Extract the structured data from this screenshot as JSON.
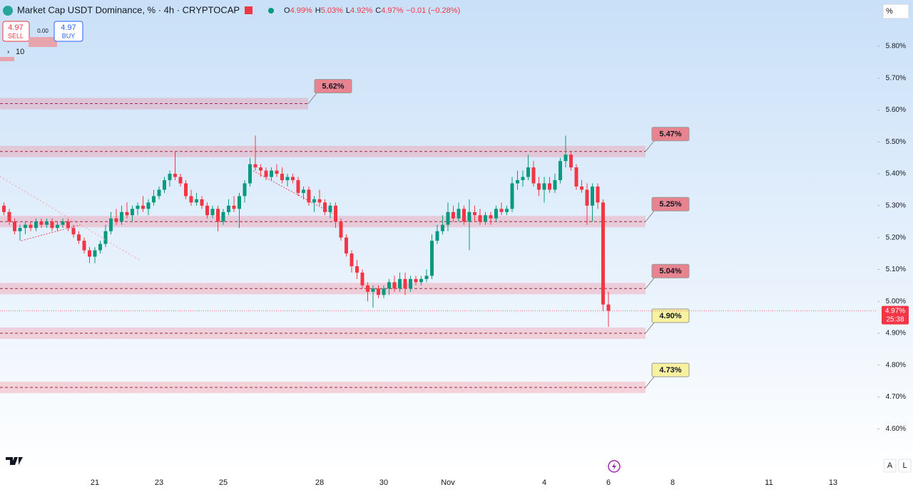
{
  "chart_data": {
    "type": "candlestick",
    "title": "Market Cap USDT Dominance, % · 4h · CRYPTOCAP",
    "ohlc_legend": [
      {
        "label": "O",
        "value": "4.99%"
      },
      {
        "label": "H",
        "value": "5.03%"
      },
      {
        "label": "L",
        "value": "4.92%"
      },
      {
        "label": "C",
        "value": "4.97%"
      }
    ],
    "change": "−0.01 (−0.28%)",
    "trade": {
      "sell_price": "4.97",
      "sell": "SELL",
      "spread": "0.00",
      "buy_price": "4.97",
      "buy": "BUY"
    },
    "indicator": "10",
    "unit": "%",
    "price_tag": {
      "value": 4.97,
      "label": "4.97%",
      "countdown": "25:38"
    },
    "scale_buttons": [
      "A",
      "L"
    ],
    "up_color": "#089981",
    "down_color": "#f23645",
    "ylim": [
      4.46,
      5.945
    ],
    "yticks": [
      {
        "value": 5.8,
        "label": "5.80%"
      },
      {
        "value": 5.7,
        "label": "5.70%"
      },
      {
        "value": 5.6,
        "label": "5.60%"
      },
      {
        "value": 5.5,
        "label": "5.50%"
      },
      {
        "value": 5.4,
        "label": "5.40%"
      },
      {
        "value": 5.3,
        "label": "5.30%"
      },
      {
        "value": 5.2,
        "label": "5.20%"
      },
      {
        "value": 5.1,
        "label": "5.10%"
      },
      {
        "value": 5.0,
        "label": "5.00%"
      },
      {
        "value": 4.9,
        "label": "4.90%"
      },
      {
        "value": 4.8,
        "label": "4.80%"
      },
      {
        "value": 4.7,
        "label": "4.70%"
      },
      {
        "value": 4.6,
        "label": "4.60%"
      }
    ],
    "levels": [
      {
        "value": 5.62,
        "label": "5.62%",
        "color": "#e8848f"
      },
      {
        "value": 5.47,
        "label": "5.47%",
        "color": "#e8848f"
      },
      {
        "value": 5.25,
        "label": "5.25%",
        "color": "#e8848f"
      },
      {
        "value": 5.04,
        "label": "5.04%",
        "color": "#e8848f"
      },
      {
        "value": 4.9,
        "label": "4.90%",
        "color": "#f7f1a0"
      },
      {
        "value": 4.73,
        "label": "4.73%",
        "color": "#f7f1a0"
      }
    ],
    "categories": [
      null,
      null,
      null,
      null,
      null,
      null,
      null,
      null,
      null,
      null,
      null,
      null,
      null,
      null,
      null,
      null,
      null,
      null,
      "21",
      null,
      null,
      null,
      null,
      null,
      null,
      null,
      null,
      null,
      null,
      null,
      "23",
      null,
      null,
      null,
      null,
      null,
      null,
      null,
      null,
      null,
      null,
      null,
      "25",
      null,
      null,
      null,
      null,
      null,
      null,
      null,
      null,
      null,
      null,
      null,
      null,
      null,
      null,
      null,
      null,
      null,
      "28",
      null,
      null,
      null,
      null,
      null,
      null,
      null,
      null,
      null,
      null,
      null,
      "30",
      null,
      null,
      null,
      null,
      null,
      null,
      null,
      null,
      null,
      null,
      null,
      "Nov",
      null,
      null,
      null,
      null,
      null,
      null,
      null,
      null,
      null,
      null,
      null,
      null,
      null,
      null,
      null,
      null,
      null,
      "4",
      null,
      null,
      null,
      null,
      null,
      null,
      null,
      null,
      null,
      null,
      null,
      "6",
      null,
      null,
      null,
      null,
      null,
      null,
      null,
      null,
      null,
      null,
      null,
      "8",
      null,
      null,
      null,
      null,
      null,
      null,
      null,
      null,
      null,
      null,
      null,
      null,
      null,
      null,
      null,
      null,
      null,
      "11",
      null,
      null,
      null,
      null,
      null,
      null,
      null,
      null,
      null,
      null,
      null,
      "13",
      null,
      null,
      null,
      null,
      null,
      null,
      null
    ],
    "ohlc": [
      null,
      [
        5.3,
        5.31,
        5.27,
        5.28
      ],
      [
        5.28,
        5.29,
        5.24,
        5.25
      ],
      [
        5.25,
        5.26,
        5.21,
        5.22
      ],
      [
        5.22,
        5.24,
        5.19,
        5.23
      ],
      [
        5.23,
        5.25,
        5.21,
        5.24
      ],
      [
        5.24,
        5.25,
        5.22,
        5.23
      ],
      [
        5.23,
        5.26,
        5.22,
        5.25
      ],
      [
        5.25,
        5.26,
        5.23,
        5.24
      ],
      [
        5.24,
        5.26,
        5.23,
        5.25
      ],
      [
        5.25,
        5.26,
        5.22,
        5.23
      ],
      [
        5.23,
        5.25,
        5.22,
        5.24
      ],
      [
        5.24,
        5.26,
        5.23,
        5.25
      ],
      [
        5.25,
        5.26,
        5.22,
        5.23
      ],
      [
        5.23,
        5.24,
        5.2,
        5.21
      ],
      [
        5.21,
        5.22,
        5.18,
        5.19
      ],
      [
        5.19,
        5.2,
        5.15,
        5.16
      ],
      [
        5.16,
        5.17,
        5.12,
        5.14
      ],
      [
        5.14,
        5.17,
        5.12,
        5.16
      ],
      [
        5.16,
        5.19,
        5.15,
        5.18
      ],
      [
        5.18,
        5.24,
        5.17,
        5.22
      ],
      [
        5.22,
        5.28,
        5.21,
        5.26
      ],
      [
        5.26,
        5.29,
        5.24,
        5.25
      ],
      [
        5.25,
        5.3,
        5.24,
        5.28
      ],
      [
        5.28,
        5.31,
        5.26,
        5.27
      ],
      [
        5.27,
        5.3,
        5.25,
        5.29
      ],
      [
        5.29,
        5.31,
        5.27,
        5.3
      ],
      [
        5.3,
        5.33,
        5.28,
        5.29
      ],
      [
        5.29,
        5.32,
        5.27,
        5.31
      ],
      [
        5.31,
        5.35,
        5.3,
        5.33
      ],
      [
        5.33,
        5.36,
        5.32,
        5.35
      ],
      [
        5.35,
        5.39,
        5.34,
        5.38
      ],
      [
        5.38,
        5.41,
        5.36,
        5.4
      ],
      [
        5.4,
        5.47,
        5.38,
        5.39
      ],
      [
        5.39,
        5.4,
        5.36,
        5.37
      ],
      [
        5.37,
        5.38,
        5.32,
        5.33
      ],
      [
        5.33,
        5.35,
        5.3,
        5.31
      ],
      [
        5.31,
        5.34,
        5.3,
        5.32
      ],
      [
        5.32,
        5.33,
        5.29,
        5.3
      ],
      [
        5.3,
        5.31,
        5.26,
        5.27
      ],
      [
        5.27,
        5.3,
        5.26,
        5.29
      ],
      [
        5.29,
        5.3,
        5.22,
        5.25
      ],
      [
        5.25,
        5.29,
        5.24,
        5.28
      ],
      [
        5.28,
        5.32,
        5.27,
        5.3
      ],
      [
        5.3,
        5.33,
        5.28,
        5.29
      ],
      [
        5.29,
        5.34,
        5.23,
        5.33
      ],
      [
        5.33,
        5.38,
        5.31,
        5.37
      ],
      [
        5.37,
        5.45,
        5.36,
        5.43
      ],
      [
        5.43,
        5.52,
        5.41,
        5.42
      ],
      [
        5.42,
        5.43,
        5.39,
        5.41
      ],
      [
        5.41,
        5.42,
        5.38,
        5.39
      ],
      [
        5.39,
        5.42,
        5.38,
        5.41
      ],
      [
        5.41,
        5.43,
        5.39,
        5.4
      ],
      [
        5.4,
        5.42,
        5.37,
        5.38
      ],
      [
        5.38,
        5.4,
        5.36,
        5.39
      ],
      [
        5.39,
        5.4,
        5.37,
        5.38
      ],
      [
        5.38,
        5.39,
        5.33,
        5.34
      ],
      [
        5.34,
        5.36,
        5.32,
        5.35
      ],
      [
        5.35,
        5.36,
        5.3,
        5.31
      ],
      [
        5.31,
        5.33,
        5.28,
        5.32
      ],
      [
        5.32,
        5.35,
        5.3,
        5.31
      ],
      [
        5.31,
        5.32,
        5.27,
        5.28
      ],
      [
        5.28,
        5.31,
        5.26,
        5.3
      ],
      [
        5.3,
        5.31,
        5.23,
        5.25
      ],
      [
        5.25,
        5.26,
        5.19,
        5.2
      ],
      [
        5.2,
        5.21,
        5.14,
        5.15
      ],
      [
        5.15,
        5.16,
        5.09,
        5.11
      ],
      [
        5.11,
        5.13,
        5.07,
        5.09
      ],
      [
        5.09,
        5.1,
        5.04,
        5.05
      ],
      [
        5.05,
        5.06,
        5.0,
        5.03
      ],
      [
        5.03,
        5.05,
        4.98,
        5.04
      ],
      [
        5.04,
        5.05,
        5.01,
        5.02
      ],
      [
        5.02,
        5.05,
        5.01,
        5.04
      ],
      [
        5.04,
        5.07,
        5.02,
        5.06
      ],
      [
        5.06,
        5.08,
        5.03,
        5.04
      ],
      [
        5.04,
        5.09,
        5.03,
        5.07
      ],
      [
        5.07,
        5.09,
        5.02,
        5.04
      ],
      [
        5.04,
        5.08,
        5.03,
        5.07
      ],
      [
        5.07,
        5.08,
        5.05,
        5.06
      ],
      [
        5.06,
        5.08,
        5.05,
        5.07
      ],
      [
        5.07,
        5.1,
        5.06,
        5.08
      ],
      [
        5.08,
        5.21,
        5.07,
        5.19
      ],
      [
        5.19,
        5.24,
        5.18,
        5.22
      ],
      [
        5.22,
        5.27,
        5.21,
        5.24
      ],
      [
        5.24,
        5.31,
        5.22,
        5.28
      ],
      [
        5.28,
        5.3,
        5.25,
        5.26
      ],
      [
        5.26,
        5.31,
        5.25,
        5.29
      ],
      [
        5.29,
        5.3,
        5.24,
        5.25
      ],
      [
        5.25,
        5.32,
        5.16,
        5.28
      ],
      [
        5.28,
        5.3,
        5.25,
        5.27
      ],
      [
        5.27,
        5.29,
        5.24,
        5.25
      ],
      [
        5.25,
        5.28,
        5.24,
        5.27
      ],
      [
        5.27,
        5.28,
        5.24,
        5.26
      ],
      [
        5.26,
        5.3,
        5.25,
        5.29
      ],
      [
        5.29,
        5.31,
        5.27,
        5.28
      ],
      [
        5.28,
        5.3,
        5.27,
        5.29
      ],
      [
        5.29,
        5.39,
        5.28,
        5.37
      ],
      [
        5.37,
        5.41,
        5.35,
        5.38
      ],
      [
        5.38,
        5.41,
        5.36,
        5.39
      ],
      [
        5.39,
        5.46,
        5.38,
        5.42
      ],
      [
        5.42,
        5.44,
        5.36,
        5.37
      ],
      [
        5.37,
        5.39,
        5.33,
        5.35
      ],
      [
        5.35,
        5.39,
        5.31,
        5.37
      ],
      [
        5.37,
        5.39,
        5.34,
        5.35
      ],
      [
        5.35,
        5.4,
        5.34,
        5.38
      ],
      [
        5.38,
        5.45,
        5.37,
        5.44
      ],
      [
        5.44,
        5.52,
        5.42,
        5.46
      ],
      [
        5.46,
        5.47,
        5.41,
        5.42
      ],
      [
        5.42,
        5.43,
        5.35,
        5.36
      ],
      [
        5.36,
        5.38,
        5.34,
        5.35
      ],
      [
        5.35,
        5.37,
        5.24,
        5.3
      ],
      [
        5.3,
        5.37,
        5.25,
        5.36
      ],
      [
        5.36,
        5.37,
        5.29,
        5.31
      ],
      [
        5.31,
        5.32,
        4.97,
        4.99
      ],
      [
        4.99,
        5.03,
        4.92,
        4.97
      ],
      null,
      null,
      null,
      null,
      null,
      null,
      null,
      null,
      null,
      null,
      null,
      null,
      null,
      null,
      null,
      null,
      null,
      null,
      null,
      null,
      null,
      null,
      null,
      null,
      null,
      null,
      null,
      null,
      null,
      null,
      null,
      null,
      null,
      null,
      null,
      null,
      null,
      null,
      null,
      null,
      null,
      null,
      null,
      null,
      null,
      null,
      null,
      null,
      null
    ]
  }
}
